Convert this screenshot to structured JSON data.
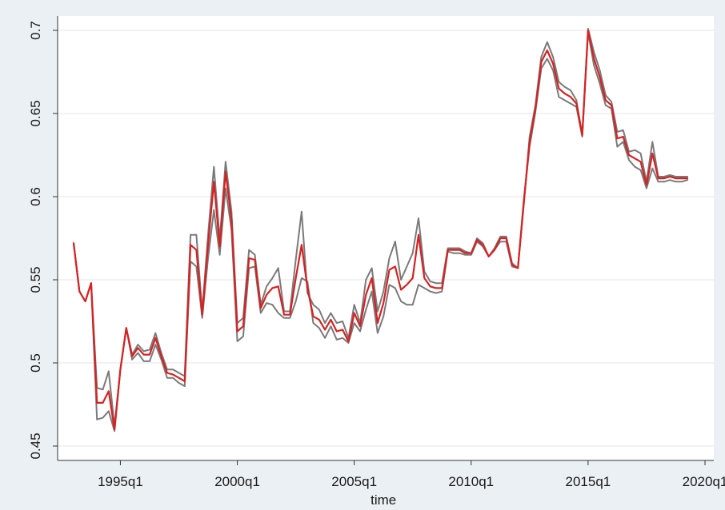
{
  "chart_data": {
    "type": "line",
    "title": "",
    "xlabel": "time",
    "ylabel": "",
    "xlim": [
      1993.0,
      2020.0
    ],
    "ylim": [
      0.45,
      0.7
    ],
    "x_ticks": [
      {
        "value": 1995,
        "label": "1995q1"
      },
      {
        "value": 2000,
        "label": "2000q1"
      },
      {
        "value": 2005,
        "label": "2005q1"
      },
      {
        "value": 2010,
        "label": "2010q1"
      },
      {
        "value": 2015,
        "label": "2015q1"
      },
      {
        "value": 2020,
        "label": "2020q1"
      }
    ],
    "y_ticks": [
      {
        "value": 0.45,
        "label": "0.45"
      },
      {
        "value": 0.5,
        "label": "0.5"
      },
      {
        "value": 0.55,
        "label": "0.55"
      },
      {
        "value": 0.6,
        "label": "0.6"
      },
      {
        "value": 0.65,
        "label": "0.65"
      },
      {
        "value": 0.7,
        "label": "0.7"
      }
    ],
    "grid": true,
    "legend": "none",
    "x": [
      1993.0,
      1993.25,
      1993.5,
      1993.75,
      1994.0,
      1994.25,
      1994.5,
      1994.75,
      1995.0,
      1995.25,
      1995.5,
      1995.75,
      1996.0,
      1996.25,
      1996.5,
      1996.75,
      1997.0,
      1997.25,
      1997.5,
      1997.75,
      1998.0,
      1998.25,
      1998.5,
      1998.75,
      1999.0,
      1999.25,
      1999.5,
      1999.75,
      2000.0,
      2000.25,
      2000.5,
      2000.75,
      2001.0,
      2001.25,
      2001.5,
      2001.75,
      2002.0,
      2002.25,
      2002.5,
      2002.75,
      2003.0,
      2003.25,
      2003.5,
      2003.75,
      2004.0,
      2004.25,
      2004.5,
      2004.75,
      2005.0,
      2005.25,
      2005.5,
      2005.75,
      2006.0,
      2006.25,
      2006.5,
      2006.75,
      2007.0,
      2007.25,
      2007.5,
      2007.75,
      2008.0,
      2008.25,
      2008.5,
      2008.75,
      2009.0,
      2009.25,
      2009.5,
      2009.75,
      2010.0,
      2010.25,
      2010.5,
      2010.75,
      2011.0,
      2011.25,
      2011.5,
      2011.75,
      2012.0,
      2012.25,
      2012.5,
      2012.75,
      2013.0,
      2013.25,
      2013.5,
      2013.75,
      2014.0,
      2014.25,
      2014.5,
      2014.75,
      2015.0,
      2015.25,
      2015.5,
      2015.75,
      2016.0,
      2016.25,
      2016.5,
      2016.75,
      2017.0,
      2017.25,
      2017.5,
      2017.75,
      2018.0,
      2018.25,
      2018.5,
      2018.75,
      2019.0,
      2019.25
    ],
    "series": [
      {
        "color": "#7a7a7a",
        "width": 2.0,
        "values": [
          0.572,
          0.543,
          0.537,
          0.548,
          0.485,
          0.484,
          0.495,
          0.462,
          0.496,
          0.521,
          0.505,
          0.511,
          0.507,
          0.508,
          0.518,
          0.506,
          0.496,
          0.496,
          0.494,
          0.492,
          0.577,
          0.577,
          0.531,
          0.577,
          0.618,
          0.574,
          0.621,
          0.591,
          0.524,
          0.527,
          0.568,
          0.565,
          0.535,
          0.546,
          0.551,
          0.557,
          0.531,
          0.531,
          0.562,
          0.591,
          0.542,
          0.535,
          0.532,
          0.524,
          0.53,
          0.524,
          0.525,
          0.515,
          0.535,
          0.524,
          0.55,
          0.557,
          0.531,
          0.543,
          0.563,
          0.573,
          0.55,
          0.558,
          0.566,
          0.587,
          0.555,
          0.549,
          0.548,
          0.548,
          0.569,
          0.569,
          0.569,
          0.567,
          0.566,
          0.575,
          0.572,
          0.564,
          0.569,
          0.576,
          0.576,
          0.56,
          0.557,
          0.595,
          0.636,
          0.655,
          0.684,
          0.693,
          0.684,
          0.669,
          0.666,
          0.664,
          0.658,
          0.637,
          0.701,
          0.687,
          0.676,
          0.661,
          0.657,
          0.639,
          0.64,
          0.627,
          0.628,
          0.626,
          0.609,
          0.633,
          0.612,
          0.612,
          0.613,
          0.612,
          0.612,
          0.612
        ]
      },
      {
        "color": "#7a7a7a",
        "width": 2.0,
        "values": [
          0.572,
          0.543,
          0.537,
          0.548,
          0.466,
          0.467,
          0.471,
          0.459,
          0.496,
          0.521,
          0.502,
          0.506,
          0.501,
          0.501,
          0.511,
          0.502,
          0.491,
          0.491,
          0.488,
          0.486,
          0.561,
          0.558,
          0.527,
          0.563,
          0.592,
          0.565,
          0.605,
          0.58,
          0.513,
          0.516,
          0.557,
          0.558,
          0.53,
          0.536,
          0.535,
          0.53,
          0.527,
          0.527,
          0.537,
          0.551,
          0.549,
          0.524,
          0.521,
          0.515,
          0.522,
          0.514,
          0.515,
          0.512,
          0.524,
          0.519,
          0.532,
          0.543,
          0.518,
          0.528,
          0.547,
          0.545,
          0.537,
          0.535,
          0.535,
          0.547,
          0.545,
          0.543,
          0.542,
          0.543,
          0.567,
          0.566,
          0.566,
          0.565,
          0.565,
          0.573,
          0.57,
          0.564,
          0.568,
          0.573,
          0.573,
          0.558,
          0.557,
          0.598,
          0.63,
          0.651,
          0.677,
          0.683,
          0.676,
          0.66,
          0.658,
          0.656,
          0.654,
          0.636,
          0.699,
          0.679,
          0.668,
          0.655,
          0.653,
          0.63,
          0.633,
          0.622,
          0.618,
          0.616,
          0.605,
          0.617,
          0.609,
          0.609,
          0.61,
          0.609,
          0.609,
          0.61
        ]
      },
      {
        "color": "#d62222",
        "width": 2.2,
        "values": [
          0.572,
          0.543,
          0.537,
          0.548,
          0.476,
          0.476,
          0.483,
          0.46,
          0.496,
          0.521,
          0.504,
          0.509,
          0.505,
          0.505,
          0.515,
          0.504,
          0.494,
          0.493,
          0.491,
          0.489,
          0.571,
          0.568,
          0.529,
          0.571,
          0.609,
          0.57,
          0.615,
          0.586,
          0.519,
          0.522,
          0.563,
          0.562,
          0.533,
          0.541,
          0.545,
          0.546,
          0.529,
          0.529,
          0.551,
          0.571,
          0.545,
          0.528,
          0.526,
          0.52,
          0.526,
          0.519,
          0.52,
          0.513,
          0.53,
          0.522,
          0.541,
          0.551,
          0.524,
          0.536,
          0.556,
          0.558,
          0.544,
          0.547,
          0.551,
          0.577,
          0.551,
          0.546,
          0.545,
          0.545,
          0.568,
          0.568,
          0.568,
          0.566,
          0.566,
          0.574,
          0.571,
          0.564,
          0.568,
          0.575,
          0.575,
          0.559,
          0.557,
          0.596,
          0.633,
          0.653,
          0.681,
          0.688,
          0.68,
          0.665,
          0.662,
          0.66,
          0.656,
          0.637,
          0.7,
          0.683,
          0.672,
          0.658,
          0.655,
          0.635,
          0.636,
          0.625,
          0.623,
          0.621,
          0.607,
          0.626,
          0.611,
          0.611,
          0.612,
          0.611,
          0.611,
          0.611
        ]
      }
    ]
  }
}
